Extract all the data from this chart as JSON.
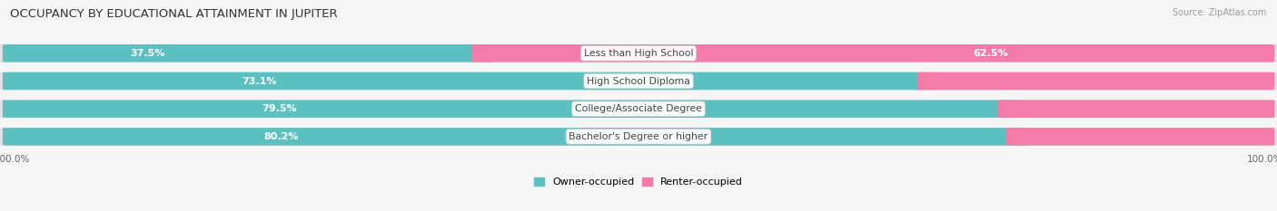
{
  "title": "OCCUPANCY BY EDUCATIONAL ATTAINMENT IN JUPITER",
  "source": "Source: ZipAtlas.com",
  "categories": [
    "Less than High School",
    "High School Diploma",
    "College/Associate Degree",
    "Bachelor's Degree or higher"
  ],
  "owner_pct": [
    37.5,
    73.1,
    79.5,
    80.2
  ],
  "renter_pct": [
    62.5,
    26.9,
    20.5,
    19.8
  ],
  "owner_color": "#5DC0C0",
  "renter_color": "#F47BA8",
  "bar_height": 0.62,
  "background_color": "#f5f5f5",
  "bar_background": "#e2e2e8",
  "title_fontsize": 9.5,
  "label_fontsize": 7.8,
  "pct_fontsize": 8.0,
  "tick_fontsize": 7.5,
  "source_fontsize": 7.0,
  "legend_fontsize": 8.0
}
